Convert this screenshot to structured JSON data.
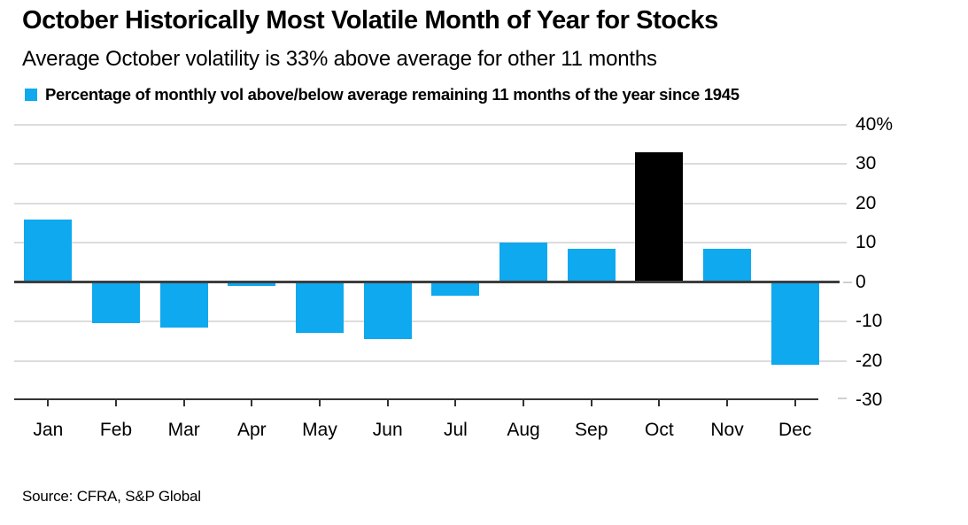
{
  "header": {
    "title": "October Historically Most Volatile Month of Year for Stocks",
    "subtitle": "Average October volatility is 33% above average for other 11 months"
  },
  "legend": {
    "swatch_color": "#0EA9EE",
    "label": "Percentage of monthly vol above/below average remaining 11 months of the year since 1945"
  },
  "source": "Source: CFRA, S&P Global",
  "chart_data": {
    "type": "bar",
    "title": "October Historically Most Volatile Month of Year for Stocks",
    "subtitle": "Average October volatility is 33% above average for other 11 months",
    "series_name": "Percentage of monthly vol above/below average remaining 11 months of the year since 1945",
    "categories": [
      "Jan",
      "Feb",
      "Mar",
      "Apr",
      "May",
      "Jun",
      "Jul",
      "Aug",
      "Sep",
      "Oct",
      "Nov",
      "Dec"
    ],
    "values": [
      16,
      -10.5,
      -11.5,
      -1,
      -13,
      -14.5,
      -3.5,
      10,
      8.5,
      33,
      8.5,
      -21
    ],
    "unit": "%",
    "highlight_index": 9,
    "highlight_category": "Oct",
    "ylim": [
      -30,
      40
    ],
    "yticks": [
      40,
      30,
      20,
      10,
      0,
      -10,
      -20,
      -30
    ],
    "ytick_labels": [
      "40%",
      "30",
      "20",
      "10",
      "0",
      "-10",
      "-20",
      "-30"
    ],
    "grid": true,
    "legend_position": "top-left",
    "colors": {
      "bar": "#0EA9EE",
      "highlight": "#000000",
      "grid": "#DCDCDC",
      "zero_line": "#3D3D3D",
      "axis": "#333333",
      "tick_dash": "#CFCFCF",
      "text": "#000000"
    },
    "source": "Source: CFRA, S&P Global"
  }
}
